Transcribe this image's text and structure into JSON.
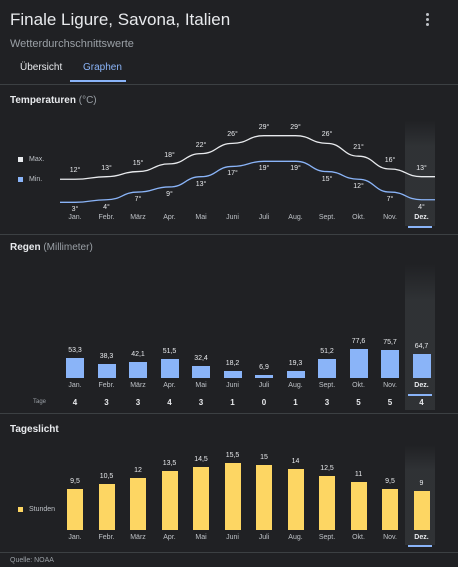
{
  "header": {
    "title": "Finale Ligure, Savona, Italien",
    "subtitle": "Wetterdurchschnittswerte",
    "menu_icon": "more-vert-icon"
  },
  "tabs": [
    {
      "label": "Übersicht",
      "selected": false
    },
    {
      "label": "Graphen",
      "selected": true
    }
  ],
  "months": [
    "Jan.",
    "Febr.",
    "März",
    "Apr.",
    "Mai",
    "Juni",
    "Juli",
    "Aug.",
    "Sept.",
    "Okt.",
    "Nov.",
    "Dez."
  ],
  "selected_month_index": 11,
  "temperature": {
    "title": "Temperaturen",
    "unit": "(°C)",
    "max_label": "Max.",
    "min_label": "Min.",
    "max_color": "#e8eaed",
    "min_color": "#8ab4f8",
    "max_labels": [
      "12°",
      "13°",
      "15°",
      "18°",
      "22°",
      "26°",
      "29°",
      "29°",
      "26°",
      "21°",
      "16°",
      "13°"
    ],
    "min_labels": [
      "3°",
      "4°",
      "7°",
      "9°",
      "13°",
      "17°",
      "19°",
      "19°",
      "15°",
      "12°",
      "7°",
      "4°"
    ]
  },
  "rain": {
    "title": "Regen",
    "unit": "(Millimeter)",
    "bar_color": "#8ab4f8",
    "labels": [
      "53,3",
      "38,3",
      "42,1",
      "51,5",
      "32,4",
      "18,2",
      "6,9",
      "19,3",
      "51,2",
      "77,6",
      "75,7",
      "64,7"
    ],
    "days_label": "Tage",
    "days": [
      "4",
      "3",
      "3",
      "4",
      "3",
      "1",
      "0",
      "1",
      "3",
      "5",
      "5",
      "4"
    ]
  },
  "daylight": {
    "title": "Tageslicht",
    "legend": "Stunden",
    "bar_color": "#fdd663",
    "labels": [
      "9,5",
      "10,5",
      "12",
      "13,5",
      "14,5",
      "15,5",
      "15",
      "14",
      "12,5",
      "11",
      "9,5",
      "9"
    ]
  },
  "source": "Quelle: NOAA",
  "chart_data": [
    {
      "type": "line",
      "title": "Temperaturen",
      "ylabel": "°C",
      "categories": [
        "Jan.",
        "Febr.",
        "März",
        "Apr.",
        "Mai",
        "Juni",
        "Juli",
        "Aug.",
        "Sept.",
        "Okt.",
        "Nov.",
        "Dez."
      ],
      "series": [
        {
          "name": "Max.",
          "values": [
            12,
            13,
            15,
            18,
            22,
            26,
            29,
            29,
            26,
            21,
            16,
            13
          ]
        },
        {
          "name": "Min.",
          "values": [
            3,
            4,
            7,
            9,
            13,
            17,
            19,
            19,
            15,
            12,
            7,
            4
          ]
        }
      ]
    },
    {
      "type": "bar",
      "title": "Regen",
      "ylabel": "Millimeter",
      "categories": [
        "Jan.",
        "Febr.",
        "März",
        "Apr.",
        "Mai",
        "Juni",
        "Juli",
        "Aug.",
        "Sept.",
        "Okt.",
        "Nov.",
        "Dez."
      ],
      "values": [
        53.3,
        38.3,
        42.1,
        51.5,
        32.4,
        18.2,
        6.9,
        19.3,
        51.2,
        77.6,
        75.7,
        64.7
      ]
    },
    {
      "type": "bar",
      "title": "Tageslicht",
      "categories": [
        "Jan.",
        "Febr.",
        "März",
        "Apr.",
        "Mai",
        "Juni",
        "Juli",
        "Aug.",
        "Sept.",
        "Okt.",
        "Nov.",
        "Dez."
      ],
      "series": [
        {
          "name": "Stunden",
          "values": [
            9.5,
            10.5,
            12,
            13.5,
            14.5,
            15.5,
            15,
            14,
            12.5,
            11,
            9.5,
            9
          ]
        }
      ]
    }
  ]
}
